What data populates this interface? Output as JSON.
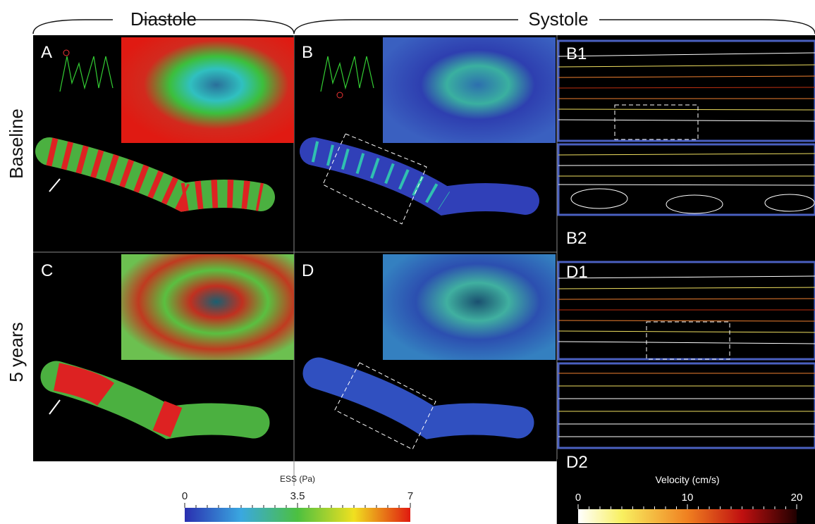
{
  "header": {
    "left": "Diastole",
    "right": "Systole"
  },
  "rows": [
    "Baseline",
    "5 years"
  ],
  "panels": {
    "A": "A",
    "B": "B",
    "B1": "B1",
    "B2": "B2",
    "C": "C",
    "D": "D",
    "D1": "D1",
    "D2": "D2"
  },
  "colorbars": [
    {
      "title": "ESS (Pa)",
      "lim": [
        0,
        7
      ],
      "ticks": [
        0,
        3.5,
        7
      ]
    },
    {
      "title": "Velocity (cm/s)",
      "lim": [
        0,
        20
      ],
      "ticks": [
        0,
        10,
        20
      ]
    }
  ]
}
